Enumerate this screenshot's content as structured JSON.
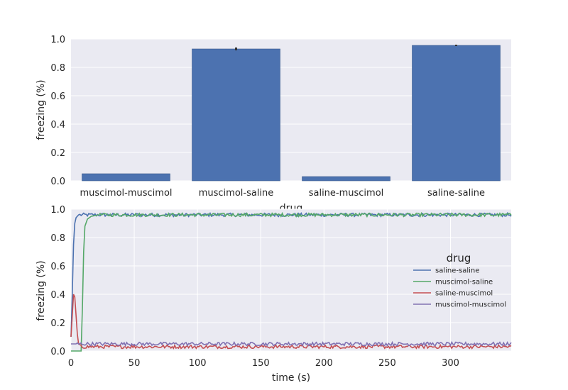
{
  "chart_data": [
    {
      "type": "bar",
      "xlabel": "drug",
      "ylabel": "freezing (%)",
      "ylim": [
        0,
        1.0
      ],
      "yticks": [
        "0.0",
        "0.2",
        "0.4",
        "0.6",
        "0.8",
        "1.0"
      ],
      "categories": [
        "muscimol-muscimol",
        "muscimol-saline",
        "saline-muscimol",
        "saline-saline"
      ],
      "values": [
        0.05,
        0.93,
        0.03,
        0.955
      ],
      "errors": [
        0.0,
        0.01,
        0.0,
        0.005
      ],
      "color": "#4c72b0",
      "grid": true
    },
    {
      "type": "line",
      "xlabel": "time (s)",
      "ylabel": "freezing (%)",
      "xlim": [
        0,
        348
      ],
      "ylim": [
        0,
        1.0
      ],
      "xticks": [
        "0",
        "50",
        "100",
        "150",
        "200",
        "250",
        "300"
      ],
      "yticks": [
        "0.0",
        "0.2",
        "0.4",
        "0.6",
        "0.8",
        "1.0"
      ],
      "legend": {
        "title": "drug",
        "placement": "center-right"
      },
      "series": [
        {
          "name": "saline-saline",
          "color": "#4c72b0",
          "plateau": 0.96,
          "onset": [
            [
              0,
              0.1
            ],
            [
              1,
              0.4
            ],
            [
              2,
              0.75
            ],
            [
              3,
              0.9
            ],
            [
              4,
              0.94
            ],
            [
              6,
              0.96
            ]
          ]
        },
        {
          "name": "muscimol-saline",
          "color": "#55a868",
          "plateau": 0.96,
          "onset": [
            [
              0,
              0.0
            ],
            [
              8,
              0.0
            ],
            [
              9,
              0.3
            ],
            [
              10,
              0.7
            ],
            [
              11,
              0.88
            ],
            [
              13,
              0.93
            ],
            [
              16,
              0.95
            ],
            [
              22,
              0.96
            ]
          ]
        },
        {
          "name": "saline-muscimol",
          "color": "#c44e52",
          "plateau": 0.03,
          "onset": [
            [
              0,
              0.1
            ],
            [
              1,
              0.25
            ],
            [
              2,
              0.4
            ],
            [
              3,
              0.38
            ],
            [
              4,
              0.25
            ],
            [
              5,
              0.12
            ],
            [
              6,
              0.05
            ],
            [
              8,
              0.04
            ]
          ]
        },
        {
          "name": "muscimol-muscimol",
          "color": "#8172b2",
          "plateau": 0.05,
          "onset": [
            [
              0,
              0.05
            ],
            [
              4,
              0.05
            ]
          ]
        }
      ]
    }
  ]
}
